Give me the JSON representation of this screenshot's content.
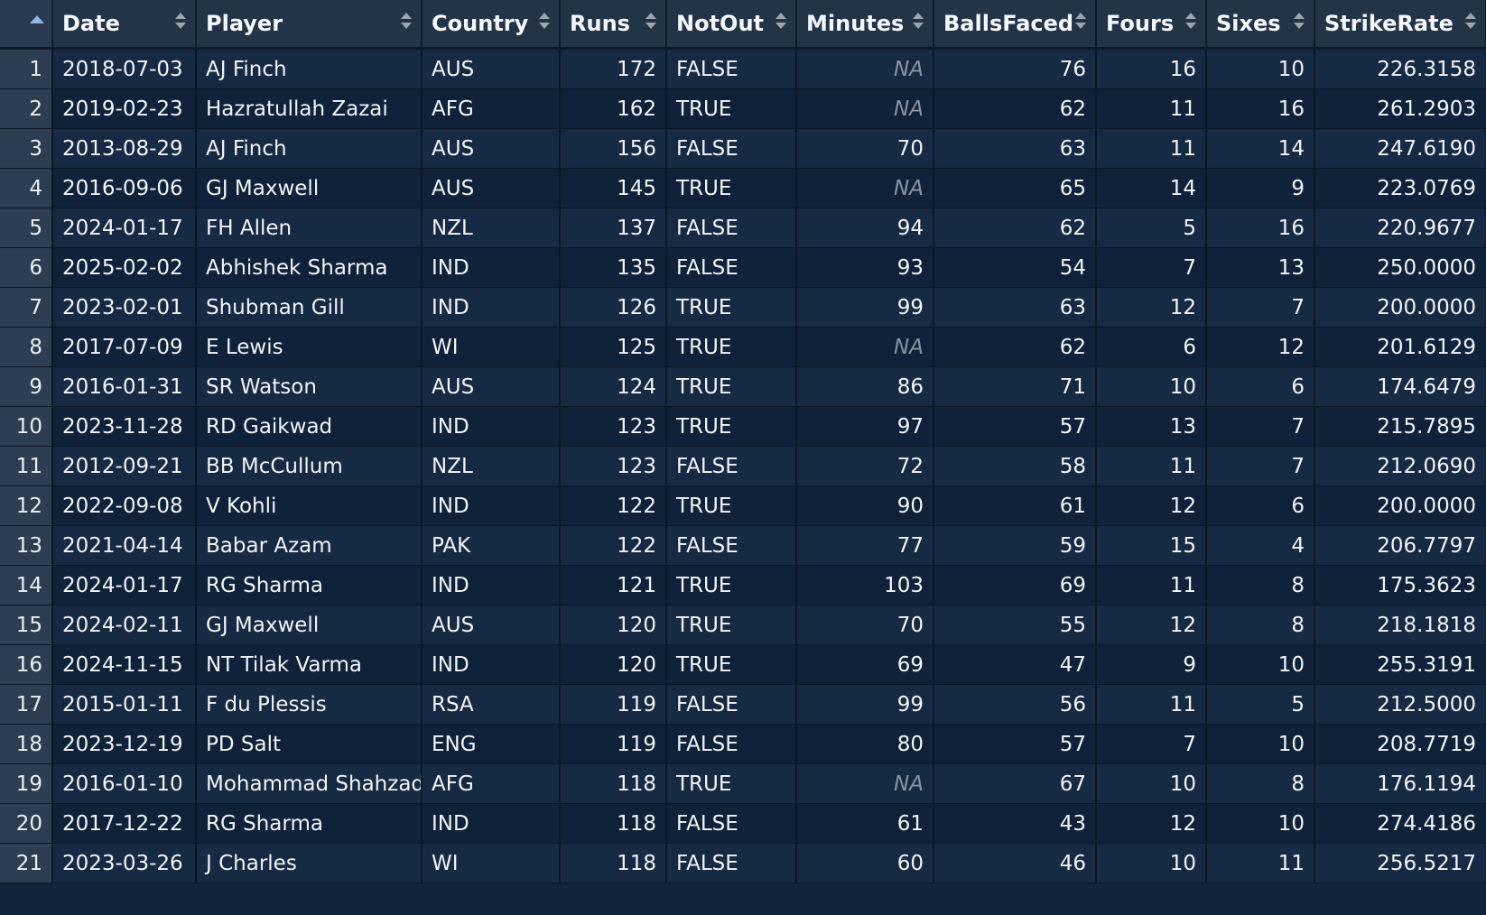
{
  "columns": [
    {
      "key": "idx",
      "label": ""
    },
    {
      "key": "Date",
      "label": "Date"
    },
    {
      "key": "Player",
      "label": "Player"
    },
    {
      "key": "Country",
      "label": "Country"
    },
    {
      "key": "Runs",
      "label": "Runs"
    },
    {
      "key": "NotOut",
      "label": "NotOut"
    },
    {
      "key": "Minutes",
      "label": "Minutes"
    },
    {
      "key": "BallsFaced",
      "label": "BallsFaced"
    },
    {
      "key": "Fours",
      "label": "Fours"
    },
    {
      "key": "Sixes",
      "label": "Sixes"
    },
    {
      "key": "StrikeRate",
      "label": "StrikeRate"
    }
  ],
  "rows": [
    [
      "1",
      "2018-07-03",
      "AJ Finch",
      "AUS",
      "172",
      "FALSE",
      "NA",
      "76",
      "16",
      "10",
      "226.3158"
    ],
    [
      "2",
      "2019-02-23",
      "Hazratullah Zazai",
      "AFG",
      "162",
      "TRUE",
      "NA",
      "62",
      "11",
      "16",
      "261.2903"
    ],
    [
      "3",
      "2013-08-29",
      "AJ Finch",
      "AUS",
      "156",
      "FALSE",
      "70",
      "63",
      "11",
      "14",
      "247.6190"
    ],
    [
      "4",
      "2016-09-06",
      "GJ Maxwell",
      "AUS",
      "145",
      "TRUE",
      "NA",
      "65",
      "14",
      "9",
      "223.0769"
    ],
    [
      "5",
      "2024-01-17",
      "FH Allen",
      "NZL",
      "137",
      "FALSE",
      "94",
      "62",
      "5",
      "16",
      "220.9677"
    ],
    [
      "6",
      "2025-02-02",
      "Abhishek Sharma",
      "IND",
      "135",
      "FALSE",
      "93",
      "54",
      "7",
      "13",
      "250.0000"
    ],
    [
      "7",
      "2023-02-01",
      "Shubman Gill",
      "IND",
      "126",
      "TRUE",
      "99",
      "63",
      "12",
      "7",
      "200.0000"
    ],
    [
      "8",
      "2017-07-09",
      "E Lewis",
      "WI",
      "125",
      "TRUE",
      "NA",
      "62",
      "6",
      "12",
      "201.6129"
    ],
    [
      "9",
      "2016-01-31",
      "SR Watson",
      "AUS",
      "124",
      "TRUE",
      "86",
      "71",
      "10",
      "6",
      "174.6479"
    ],
    [
      "10",
      "2023-11-28",
      "RD Gaikwad",
      "IND",
      "123",
      "TRUE",
      "97",
      "57",
      "13",
      "7",
      "215.7895"
    ],
    [
      "11",
      "2012-09-21",
      "BB McCullum",
      "NZL",
      "123",
      "FALSE",
      "72",
      "58",
      "11",
      "7",
      "212.0690"
    ],
    [
      "12",
      "2022-09-08",
      "V Kohli",
      "IND",
      "122",
      "TRUE",
      "90",
      "61",
      "12",
      "6",
      "200.0000"
    ],
    [
      "13",
      "2021-04-14",
      "Babar Azam",
      "PAK",
      "122",
      "FALSE",
      "77",
      "59",
      "15",
      "4",
      "206.7797"
    ],
    [
      "14",
      "2024-01-17",
      "RG Sharma",
      "IND",
      "121",
      "TRUE",
      "103",
      "69",
      "11",
      "8",
      "175.3623"
    ],
    [
      "15",
      "2024-02-11",
      "GJ Maxwell",
      "AUS",
      "120",
      "TRUE",
      "70",
      "55",
      "12",
      "8",
      "218.1818"
    ],
    [
      "16",
      "2024-11-15",
      "NT Tilak Varma",
      "IND",
      "120",
      "TRUE",
      "69",
      "47",
      "9",
      "10",
      "255.3191"
    ],
    [
      "17",
      "2015-01-11",
      "F du Plessis",
      "RSA",
      "119",
      "FALSE",
      "99",
      "56",
      "11",
      "5",
      "212.5000"
    ],
    [
      "18",
      "2023-12-19",
      "PD Salt",
      "ENG",
      "119",
      "FALSE",
      "80",
      "57",
      "7",
      "10",
      "208.7719"
    ],
    [
      "19",
      "2016-01-10",
      "Mohammad Shahzad",
      "AFG",
      "118",
      "TRUE",
      "NA",
      "67",
      "10",
      "8",
      "176.1194"
    ],
    [
      "20",
      "2017-12-22",
      "RG Sharma",
      "IND",
      "118",
      "FALSE",
      "61",
      "43",
      "12",
      "10",
      "274.4186"
    ],
    [
      "21",
      "2023-03-26",
      "J Charles",
      "WI",
      "118",
      "FALSE",
      "60",
      "46",
      "10",
      "11",
      "256.5217"
    ]
  ],
  "numeric_columns": [
    "Runs",
    "Minutes",
    "BallsFaced",
    "Fours",
    "Sixes",
    "StrikeRate"
  ],
  "sort": {
    "column": "idx",
    "direction": "ascending"
  },
  "colors": {
    "header_bg": "#243447",
    "row_odd": "#162a44",
    "row_even": "#10223a",
    "na_text": "#8793a3",
    "sort_active": "#8fb3e6"
  },
  "icons": {
    "sort_active": "sort-ascending-icon",
    "sort_inactive": "sort-both-icon"
  }
}
